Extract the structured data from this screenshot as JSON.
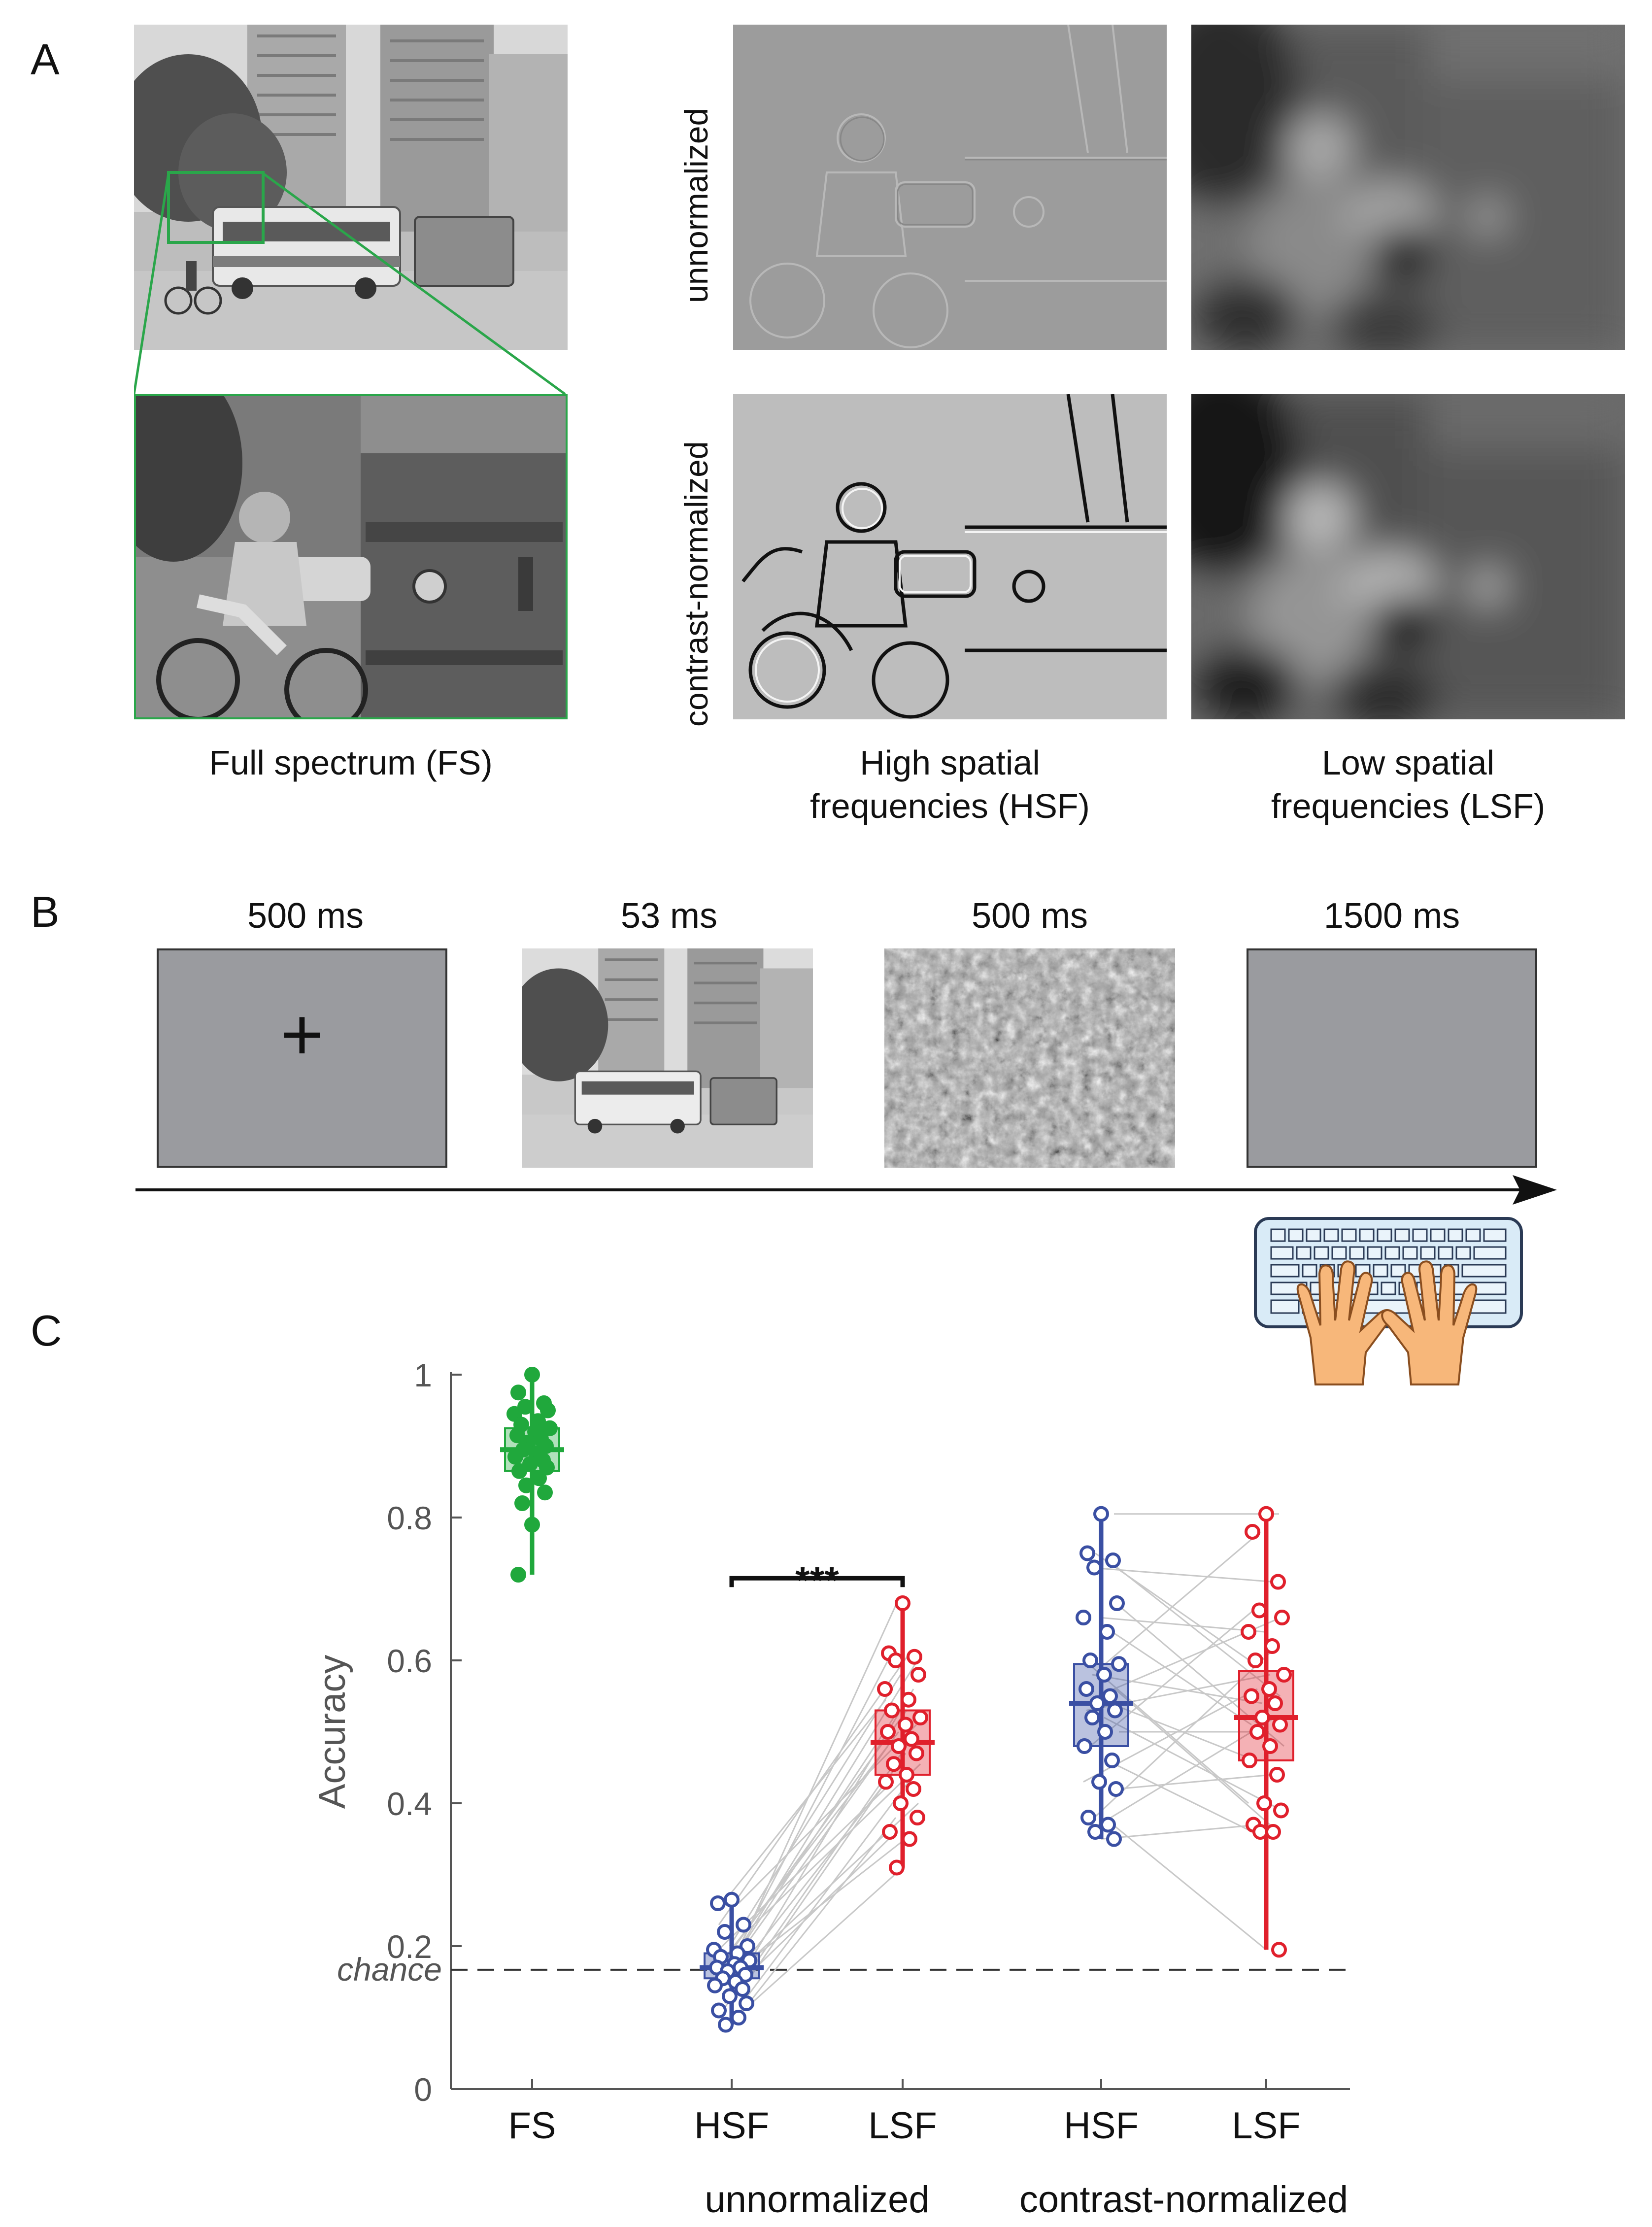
{
  "panel_a": {
    "letter": "A",
    "row_labels": [
      "unnormalized",
      "contrast-normalized"
    ],
    "captions": {
      "fs": "Full spectrum (FS)",
      "hsf_line1": "High spatial",
      "hsf_line2": "frequencies (HSF)",
      "lsf_line1": "Low spatial",
      "lsf_line2": "frequencies (LSF)"
    },
    "colors": {
      "zoom_box": "#2aa64a"
    }
  },
  "panel_b": {
    "letter": "B",
    "durations": [
      "500 ms",
      "53 ms",
      "500 ms",
      "1500 ms"
    ],
    "fixation": "+",
    "icons": [
      "fixation-screen",
      "scene-image",
      "noise-mask",
      "blank-screen",
      "keyboard-icon"
    ]
  },
  "panel_c": {
    "letter": "C",
    "chance_label": "chance",
    "significance": "***",
    "x_categories": [
      "FS",
      "HSF",
      "LSF",
      "HSF",
      "LSF"
    ],
    "group_labels": [
      "unnormalized",
      "contrast-normalized"
    ]
  },
  "chart_data": {
    "type": "scatter",
    "ylabel": "Accuracy",
    "ylim": [
      0,
      1
    ],
    "yticks": [
      "0",
      "0.2",
      "0.4",
      "0.6",
      "0.8",
      "1"
    ],
    "ytick_values": [
      0,
      0.2,
      0.4,
      0.6,
      0.8,
      1
    ],
    "chance": 0.167,
    "colors": {
      "FS": "#20a83c",
      "HSF": "#3a4fa3",
      "LSF": "#e0202c",
      "pair": "#c8c8c8"
    },
    "series": [
      {
        "category": "FS",
        "group": "",
        "median": 0.895,
        "q1": 0.865,
        "q3": 0.925,
        "values": [
          1.0,
          0.975,
          0.96,
          0.955,
          0.95,
          0.945,
          0.935,
          0.93,
          0.925,
          0.92,
          0.915,
          0.91,
          0.905,
          0.9,
          0.895,
          0.89,
          0.885,
          0.88,
          0.875,
          0.87,
          0.865,
          0.855,
          0.845,
          0.835,
          0.82,
          0.79,
          0.72
        ]
      },
      {
        "category": "HSF",
        "group": "unnormalized",
        "median": 0.17,
        "q1": 0.155,
        "q3": 0.19,
        "values": [
          0.265,
          0.26,
          0.23,
          0.22,
          0.2,
          0.195,
          0.19,
          0.185,
          0.18,
          0.175,
          0.17,
          0.17,
          0.165,
          0.16,
          0.155,
          0.15,
          0.145,
          0.14,
          0.13,
          0.12,
          0.11,
          0.1,
          0.09
        ]
      },
      {
        "category": "LSF",
        "group": "unnormalized",
        "median": 0.485,
        "q1": 0.44,
        "q3": 0.53,
        "values": [
          0.68,
          0.61,
          0.605,
          0.6,
          0.58,
          0.56,
          0.545,
          0.53,
          0.52,
          0.51,
          0.5,
          0.49,
          0.48,
          0.47,
          0.455,
          0.44,
          0.43,
          0.42,
          0.4,
          0.38,
          0.36,
          0.35,
          0.31
        ]
      },
      {
        "category": "HSF",
        "group": "contrast-normalized",
        "median": 0.54,
        "q1": 0.48,
        "q3": 0.595,
        "values": [
          0.805,
          0.75,
          0.74,
          0.73,
          0.68,
          0.66,
          0.64,
          0.6,
          0.595,
          0.58,
          0.56,
          0.55,
          0.54,
          0.53,
          0.52,
          0.5,
          0.48,
          0.46,
          0.43,
          0.42,
          0.38,
          0.37,
          0.36,
          0.35
        ]
      },
      {
        "category": "LSF",
        "group": "contrast-normalized",
        "median": 0.52,
        "q1": 0.46,
        "q3": 0.585,
        "values": [
          0.805,
          0.78,
          0.71,
          0.67,
          0.66,
          0.64,
          0.62,
          0.6,
          0.58,
          0.56,
          0.55,
          0.54,
          0.52,
          0.51,
          0.5,
          0.48,
          0.46,
          0.44,
          0.4,
          0.39,
          0.37,
          0.36,
          0.36,
          0.195
        ]
      }
    ],
    "pairs": [
      {
        "from": 1,
        "to": 2
      },
      {
        "from": 3,
        "to": 4
      }
    ]
  }
}
